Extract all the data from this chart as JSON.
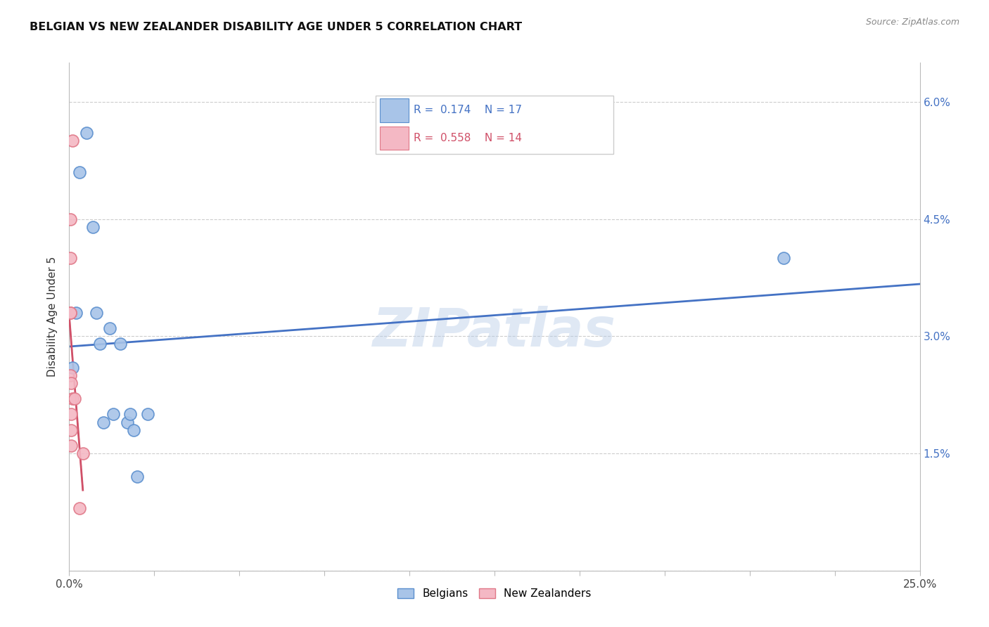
{
  "title": "BELGIAN VS NEW ZEALANDER DISABILITY AGE UNDER 5 CORRELATION CHART",
  "source": "Source: ZipAtlas.com",
  "ylabel": "Disability Age Under 5",
  "xlim": [
    0.0,
    0.25
  ],
  "ylim": [
    0.0,
    0.065
  ],
  "xticks": [
    0.0,
    0.025,
    0.05,
    0.075,
    0.1,
    0.125,
    0.15,
    0.175,
    0.2,
    0.225,
    0.25
  ],
  "yticks": [
    0.0,
    0.015,
    0.03,
    0.045,
    0.06
  ],
  "watermark": "ZIPatlas",
  "legend_blue_r": "0.174",
  "legend_blue_n": "17",
  "legend_pink_r": "0.558",
  "legend_pink_n": "14",
  "blue_face_color": "#A8C4E8",
  "pink_face_color": "#F4B8C4",
  "blue_edge_color": "#5B8FCE",
  "pink_edge_color": "#E07888",
  "blue_line_color": "#4472C4",
  "pink_line_color": "#D05068",
  "legend_text_blue": "#4472C4",
  "legend_text_pink": "#D05068",
  "blue_scatter": [
    [
      0.001,
      0.026
    ],
    [
      0.002,
      0.033
    ],
    [
      0.003,
      0.051
    ],
    [
      0.005,
      0.056
    ],
    [
      0.007,
      0.044
    ],
    [
      0.008,
      0.033
    ],
    [
      0.009,
      0.029
    ],
    [
      0.01,
      0.019
    ],
    [
      0.012,
      0.031
    ],
    [
      0.013,
      0.02
    ],
    [
      0.015,
      0.029
    ],
    [
      0.017,
      0.019
    ],
    [
      0.018,
      0.02
    ],
    [
      0.019,
      0.018
    ],
    [
      0.02,
      0.012
    ],
    [
      0.023,
      0.02
    ],
    [
      0.21,
      0.04
    ]
  ],
  "pink_scatter": [
    [
      0.0003,
      0.045
    ],
    [
      0.0003,
      0.04
    ],
    [
      0.0003,
      0.033
    ],
    [
      0.0004,
      0.033
    ],
    [
      0.0004,
      0.025
    ],
    [
      0.0005,
      0.024
    ],
    [
      0.0005,
      0.02
    ],
    [
      0.0005,
      0.018
    ],
    [
      0.0006,
      0.016
    ],
    [
      0.001,
      0.055
    ],
    [
      0.001,
      0.022
    ],
    [
      0.0015,
      0.022
    ],
    [
      0.003,
      0.008
    ],
    [
      0.004,
      0.015
    ]
  ]
}
